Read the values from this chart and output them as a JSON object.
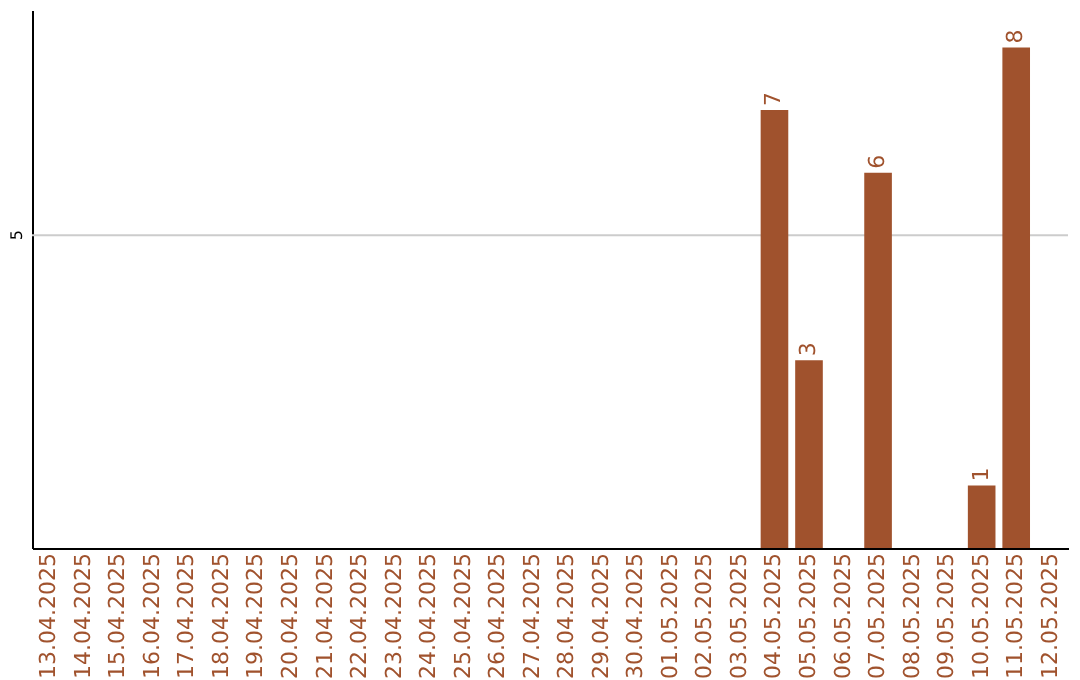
{
  "chart_data": {
    "type": "bar",
    "categories": [
      "13.04.2025",
      "14.04.2025",
      "15.04.2025",
      "16.04.2025",
      "17.04.2025",
      "18.04.2025",
      "19.04.2025",
      "20.04.2025",
      "21.04.2025",
      "22.04.2025",
      "23.04.2025",
      "24.04.2025",
      "25.04.2025",
      "26.04.2025",
      "27.04.2025",
      "28.04.2025",
      "29.04.2025",
      "30.04.2025",
      "01.05.2025",
      "02.05.2025",
      "03.05.2025",
      "04.05.2025",
      "05.05.2025",
      "06.05.2025",
      "07.05.2025",
      "08.05.2025",
      "09.05.2025",
      "10.05.2025",
      "11.05.2025",
      "12.05.2025"
    ],
    "values": [
      null,
      null,
      null,
      null,
      null,
      null,
      null,
      null,
      null,
      null,
      null,
      null,
      null,
      null,
      null,
      null,
      null,
      null,
      null,
      null,
      null,
      7,
      3,
      null,
      6,
      null,
      null,
      1,
      8,
      null
    ],
    "data_labels": true,
    "color": "#a0522d",
    "ylim": [
      0,
      8.6
    ],
    "ref_lines": [
      {
        "axis": "y",
        "value": 5,
        "label": "5",
        "color": "#cccccc"
      }
    ]
  }
}
